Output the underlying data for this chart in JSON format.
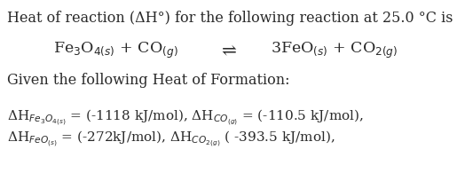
{
  "background_color": "#ffffff",
  "text_color": "#2a2a2a",
  "line1": "Heat of reaction (ΔH°) for the following reaction at 25.0 °C is",
  "line2_left": "Fe$_3$O$_{4(s)}$ + CO$_{(g)}$",
  "line2_arrow": "⇌",
  "line2_right": "3FeO$_{(s)}$ + CO$_{2(g)}$",
  "line3": "Given the following Heat of Formation:",
  "line4": "ΔH$_{Fe_3O_{4(s)}}$ = (-1118 kJ/mol), ΔH$_{CO_{(g)}}$ = (-110.5 kJ/mol),",
  "line5": "ΔH$_{FeO_{(s)}}$ = (-272kJ/mol), ΔH$_{CO_{2(g)}}$ ( -393.5 kJ/mol),",
  "fs_main": 11.5,
  "fs_eq": 12.5
}
